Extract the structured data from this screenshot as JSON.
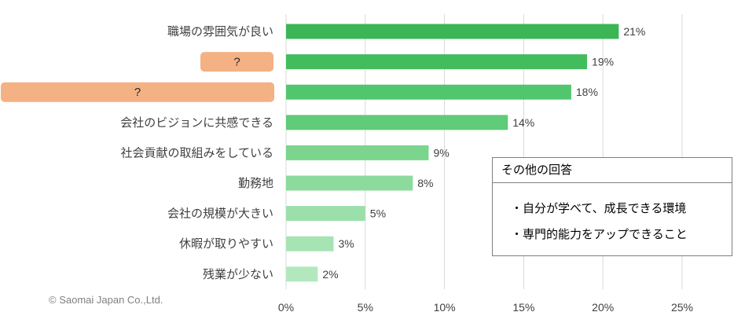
{
  "chart_data": {
    "type": "bar",
    "orientation": "horizontal",
    "categories": [
      "職場の雰囲気が良い",
      "?",
      "?",
      "会社のビジョンに共感できる",
      "社会貢献の取組みをしている",
      "勤務地",
      "会社の規模が大きい",
      "休暇が取りやすい",
      "残業が少ない"
    ],
    "values": [
      21,
      19,
      18,
      14,
      9,
      8,
      5,
      3,
      2
    ],
    "data_labels": [
      "21%",
      "19%",
      "18%",
      "14%",
      "9%",
      "8%",
      "5%",
      "3%",
      "2%"
    ],
    "xlim": [
      0,
      25
    ],
    "xticks": [
      0,
      5,
      10,
      15,
      20,
      25
    ],
    "xtick_labels": [
      "0%",
      "5%",
      "10%",
      "15%",
      "20%",
      "25%"
    ],
    "grid": true,
    "bar_colors": [
      "#3cb556",
      "#43bc5e",
      "#52c66c",
      "#60cb78",
      "#7bd58d",
      "#8cdb9d",
      "#9be0aa",
      "#a6e4b4",
      "#b3e8bf"
    ],
    "category_highlight": [
      false,
      true,
      true,
      false,
      false,
      false,
      false,
      false,
      false
    ],
    "highlight_color": "#f4b183"
  },
  "other_answers": {
    "title": "その他の回答",
    "items": [
      "・自分が学べて、成長できる環境",
      "・専門的能力をアップできること"
    ]
  },
  "copyright": "© Saomai Japan Co.,Ltd."
}
